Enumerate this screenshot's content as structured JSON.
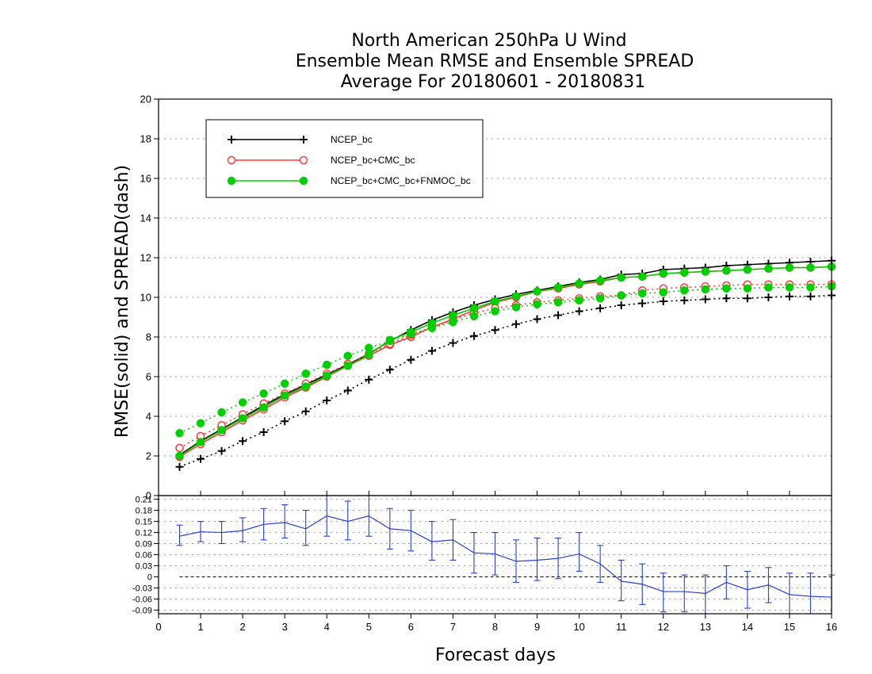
{
  "chart_data": [
    {
      "type": "line",
      "title": [
        "North American 250hPa U Wind",
        "Ensemble Mean RMSE and Ensemble SPREAD",
        "Average For 20180601 - 20180831"
      ],
      "ylabel": "RMSE(solid) and SPREAD(dash)",
      "xlabel": "Forecast days",
      "xlim": [
        0,
        16
      ],
      "ylim": [
        0,
        20
      ],
      "xticks": [
        0,
        1,
        2,
        3,
        4,
        5,
        6,
        7,
        8,
        9,
        10,
        11,
        12,
        13,
        14,
        15,
        16
      ],
      "yticks": [
        0,
        2,
        4,
        6,
        8,
        10,
        12,
        14,
        16,
        18,
        20
      ],
      "grid": "dotted horizontal",
      "legend_position": "top-left",
      "x": [
        0.5,
        1,
        1.5,
        2,
        2.5,
        3,
        3.5,
        4,
        4.5,
        5,
        5.5,
        6,
        6.5,
        7,
        7.5,
        8,
        8.5,
        9,
        9.5,
        10,
        10.5,
        11,
        11.5,
        12,
        12.5,
        13,
        13.5,
        14,
        14.5,
        15,
        15.5,
        16
      ],
      "series": [
        {
          "name": "NCEP_bc",
          "color": "#000000",
          "marker": "plus",
          "rmse": [
            2.05,
            2.75,
            3.35,
            3.95,
            4.55,
            5.1,
            5.6,
            6.1,
            6.6,
            7.15,
            7.8,
            8.35,
            8.85,
            9.25,
            9.6,
            9.9,
            10.15,
            10.35,
            10.55,
            10.75,
            10.9,
            11.15,
            11.2,
            11.4,
            11.45,
            11.5,
            11.6,
            11.65,
            11.7,
            11.75,
            11.8,
            11.85
          ],
          "spread": [
            1.45,
            1.85,
            2.25,
            2.75,
            3.2,
            3.75,
            4.25,
            4.8,
            5.3,
            5.85,
            6.35,
            6.85,
            7.3,
            7.7,
            8.05,
            8.35,
            8.65,
            8.9,
            9.1,
            9.3,
            9.45,
            9.6,
            9.7,
            9.8,
            9.85,
            9.9,
            9.95,
            9.95,
            10.0,
            10.05,
            10.05,
            10.1
          ]
        },
        {
          "name": "NCEP_bc+CMC_bc",
          "color": "#ff3a3a",
          "marker": "circle-open",
          "rmse": [
            1.95,
            2.6,
            3.2,
            3.8,
            4.35,
            4.95,
            5.45,
            6.0,
            6.55,
            7.05,
            7.6,
            8.0,
            8.5,
            8.9,
            9.35,
            9.75,
            10.0,
            10.3,
            10.45,
            10.65,
            10.8,
            11.0,
            11.05,
            11.2,
            11.25,
            11.3,
            11.35,
            11.4,
            11.45,
            11.5,
            11.5,
            11.55
          ],
          "spread": [
            2.4,
            3.0,
            3.55,
            4.1,
            4.65,
            5.15,
            5.65,
            6.15,
            6.65,
            7.15,
            7.65,
            8.1,
            8.5,
            8.85,
            9.2,
            9.45,
            9.6,
            9.75,
            9.85,
            9.95,
            10.05,
            10.1,
            10.35,
            10.45,
            10.5,
            10.55,
            10.6,
            10.65,
            10.65,
            10.65,
            10.65,
            10.65
          ]
        },
        {
          "name": "NCEP_bc+CMC_bc+FNMOC_bc",
          "color": "#00d000",
          "marker": "circle-filled",
          "rmse": [
            2.0,
            2.7,
            3.3,
            3.9,
            4.45,
            5.05,
            5.5,
            6.05,
            6.55,
            7.1,
            7.85,
            8.25,
            8.7,
            9.1,
            9.45,
            9.8,
            10.05,
            10.3,
            10.5,
            10.7,
            10.85,
            11.0,
            11.05,
            11.2,
            11.25,
            11.3,
            11.35,
            11.4,
            11.45,
            11.5,
            11.5,
            11.55
          ],
          "spread": [
            3.15,
            3.65,
            4.2,
            4.7,
            5.15,
            5.65,
            6.15,
            6.6,
            7.05,
            7.45,
            7.8,
            8.15,
            8.45,
            8.75,
            9.05,
            9.3,
            9.5,
            9.65,
            9.75,
            9.85,
            9.95,
            10.1,
            10.2,
            10.25,
            10.35,
            10.4,
            10.45,
            10.45,
            10.5,
            10.5,
            10.5,
            10.55
          ]
        }
      ]
    },
    {
      "type": "line",
      "xlim": [
        0,
        16
      ],
      "ylim": [
        -0.1,
        0.22
      ],
      "yticks": [
        -0.09,
        -0.06,
        -0.03,
        0,
        0.03,
        0.06,
        0.09,
        0.12,
        0.15,
        0.18,
        0.21
      ],
      "ytick_labels": [
        "-0.09",
        "-0.06",
        "-0.03",
        "0",
        "0.03",
        "0.06",
        "0.09",
        "0.12",
        "0.15",
        "0.18",
        "0.21"
      ],
      "y_top_label": "0",
      "grid": "dotted horizontal",
      "zero_line": "dashed",
      "series": [
        {
          "color": "#2840d8",
          "x": [
            0.5,
            1,
            1.5,
            2,
            2.5,
            3,
            3.5,
            4,
            4.5,
            5,
            5.5,
            6,
            6.5,
            7,
            7.5,
            8,
            8.5,
            9,
            9.5,
            10,
            10.5,
            11,
            11.5,
            12,
            12.5,
            13,
            13.5,
            14,
            14.5,
            15,
            15.5,
            16
          ],
          "values": [
            0.11,
            0.122,
            0.12,
            0.125,
            0.142,
            0.147,
            0.13,
            0.165,
            0.15,
            0.165,
            0.13,
            0.125,
            0.095,
            0.1,
            0.065,
            0.062,
            0.042,
            0.045,
            0.05,
            0.062,
            0.035,
            -0.012,
            -0.02,
            -0.04,
            -0.04,
            -0.045,
            -0.015,
            -0.035,
            -0.022,
            -0.048,
            -0.053,
            -0.055
          ],
          "err_low": [
            0.085,
            0.095,
            0.09,
            0.095,
            0.1,
            0.105,
            0.085,
            0.11,
            0.1,
            0.11,
            0.075,
            0.07,
            0.045,
            0.045,
            0.01,
            0.005,
            -0.015,
            -0.01,
            -0.005,
            0.015,
            -0.015,
            -0.065,
            -0.075,
            -0.095,
            -0.095,
            -0.1,
            -0.06,
            -0.085,
            -0.07,
            -0.105,
            -0.115,
            -0.115
          ],
          "err_high": [
            0.14,
            0.15,
            0.15,
            0.16,
            0.185,
            0.195,
            0.18,
            0.22,
            0.205,
            0.22,
            0.185,
            0.18,
            0.15,
            0.155,
            0.12,
            0.12,
            0.1,
            0.105,
            0.105,
            0.12,
            0.085,
            0.045,
            0.035,
            0.01,
            0.005,
            0.005,
            0.03,
            0.015,
            0.025,
            0.01,
            0.01,
            0.005
          ]
        }
      ]
    }
  ]
}
